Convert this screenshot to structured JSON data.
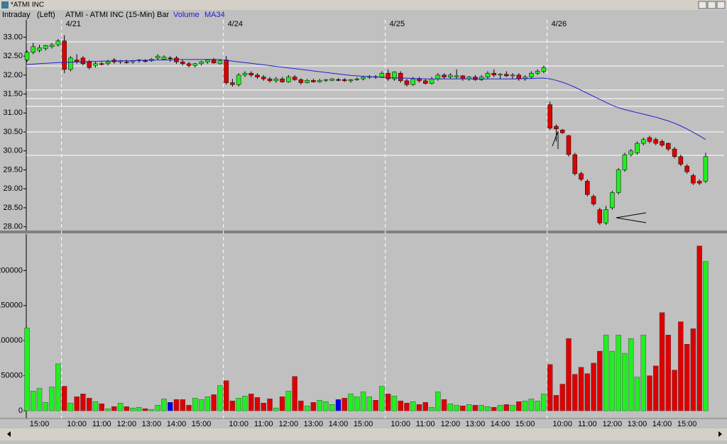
{
  "window_title": "*ATMI INC",
  "chart_data": [
    {
      "type": "candlestick",
      "period": "Intraday",
      "scale_side": "(Left)",
      "title": "ATMI - ATMI INC (15-Min)",
      "categories": [
        null,
        null,
        null,
        null,
        null,
        null,
        "4/21",
        null,
        null,
        null,
        null,
        null,
        null,
        null,
        null,
        null,
        null,
        null,
        null,
        null,
        null,
        null,
        null,
        null,
        null,
        null,
        null,
        null,
        null,
        null,
        null,
        null,
        "4/24",
        null,
        null,
        null,
        null,
        null,
        null,
        null,
        null,
        null,
        null,
        null,
        null,
        null,
        null,
        null,
        null,
        null,
        null,
        null,
        null,
        null,
        null,
        null,
        null,
        null,
        "4/25",
        null,
        null,
        null,
        null,
        null,
        null,
        null,
        null,
        null,
        null,
        null,
        null,
        null,
        null,
        null,
        null,
        null,
        null,
        null,
        null,
        null,
        null,
        null,
        null,
        null,
        "4/26",
        null,
        null,
        null,
        null,
        null,
        null,
        null,
        null,
        null,
        null,
        null,
        null,
        null,
        null,
        null,
        null,
        null,
        null,
        null,
        null,
        null,
        null,
        null,
        null,
        null
      ],
      "series": [
        {
          "name": "Bar",
          "up_color": "#22ee22",
          "down_color": "#dd0000",
          "open": [
            32.4,
            32.6,
            32.65,
            32.7,
            32.75,
            32.8,
            32.9,
            32.15,
            32.4,
            32.45,
            32.35,
            32.25,
            32.3,
            32.3,
            32.4,
            32.35,
            32.35,
            32.35,
            32.38,
            32.38,
            32.38,
            32.45,
            32.42,
            32.45,
            32.45,
            32.35,
            32.3,
            32.25,
            32.3,
            32.35,
            32.4,
            32.3,
            32.4,
            31.8,
            31.75,
            32.0,
            32.05,
            32.0,
            31.95,
            31.9,
            31.85,
            31.9,
            31.82,
            31.95,
            31.88,
            31.8,
            31.86,
            31.82,
            31.86,
            31.86,
            31.88,
            31.88,
            31.85,
            31.88,
            31.9,
            31.94,
            31.96,
            31.95,
            32.05,
            31.9,
            32.05,
            31.85,
            31.75,
            31.9,
            31.85,
            31.78,
            31.9,
            32.0,
            31.95,
            31.95,
            31.98,
            31.9,
            31.95,
            31.88,
            31.95,
            32.05,
            32.0,
            32.02,
            31.98,
            32.0,
            31.9,
            31.95,
            32.05,
            32.1,
            31.22,
            30.65,
            30.55,
            30.4,
            29.9,
            29.4,
            29.2,
            28.8,
            28.45,
            28.1,
            28.5,
            28.9,
            29.5,
            29.9,
            29.95,
            30.2,
            30.35,
            30.3,
            30.25,
            30.2,
            30.05,
            29.85,
            29.6,
            29.35,
            29.2,
            29.2
          ],
          "high": [
            32.65,
            32.85,
            32.8,
            32.8,
            32.85,
            32.95,
            33.05,
            32.5,
            32.55,
            32.5,
            32.4,
            32.35,
            32.35,
            32.4,
            32.45,
            32.4,
            32.4,
            32.4,
            32.42,
            32.42,
            32.45,
            32.55,
            32.52,
            32.5,
            32.5,
            32.4,
            32.35,
            32.32,
            32.38,
            32.42,
            32.45,
            32.4,
            32.5,
            31.9,
            32.05,
            32.1,
            32.1,
            32.05,
            32.0,
            31.95,
            31.95,
            31.95,
            32.0,
            32.0,
            31.92,
            31.9,
            31.9,
            31.9,
            31.9,
            31.92,
            31.92,
            31.92,
            31.9,
            31.94,
            31.96,
            32.0,
            32.0,
            32.1,
            32.15,
            32.1,
            32.1,
            31.9,
            31.95,
            31.95,
            31.9,
            31.95,
            32.05,
            32.05,
            32.05,
            32.15,
            32.0,
            31.98,
            32.0,
            32.0,
            32.1,
            32.15,
            32.05,
            32.1,
            32.05,
            32.05,
            32.0,
            32.1,
            32.15,
            32.25,
            31.3,
            30.7,
            30.58,
            30.42,
            29.95,
            29.45,
            29.25,
            28.85,
            28.5,
            28.55,
            28.95,
            29.55,
            29.95,
            30.05,
            30.25,
            30.35,
            30.4,
            30.35,
            30.3,
            30.22,
            30.1,
            29.9,
            29.65,
            29.4,
            29.25,
            29.95
          ],
          "low": [
            32.35,
            32.55,
            32.6,
            32.65,
            32.7,
            32.75,
            32.05,
            32.1,
            32.3,
            32.25,
            32.15,
            32.2,
            32.25,
            32.25,
            32.3,
            32.3,
            32.3,
            32.3,
            32.33,
            32.33,
            32.35,
            32.4,
            32.4,
            32.35,
            32.3,
            32.25,
            32.2,
            32.2,
            32.25,
            32.3,
            32.3,
            32.28,
            31.75,
            31.7,
            31.7,
            31.95,
            31.95,
            31.9,
            31.85,
            31.8,
            31.8,
            31.8,
            31.8,
            31.85,
            31.75,
            31.78,
            31.8,
            31.8,
            31.82,
            31.84,
            31.84,
            31.82,
            31.8,
            31.85,
            31.86,
            31.9,
            31.9,
            31.92,
            31.85,
            31.85,
            31.8,
            31.7,
            31.72,
            31.8,
            31.75,
            31.75,
            31.85,
            31.9,
            31.9,
            31.9,
            31.85,
            31.85,
            31.85,
            31.85,
            31.9,
            31.95,
            31.9,
            31.95,
            31.9,
            31.85,
            31.85,
            31.9,
            32.0,
            32.05,
            30.55,
            30.25,
            30.45,
            29.85,
            29.35,
            29.2,
            28.8,
            28.55,
            28.05,
            28.05,
            28.45,
            28.85,
            29.45,
            29.85,
            29.9,
            30.15,
            30.2,
            30.15,
            30.1,
            30.0,
            29.8,
            29.6,
            29.4,
            29.1,
            29.1,
            29.15
          ],
          "close": [
            32.6,
            32.75,
            32.72,
            32.78,
            32.8,
            32.9,
            32.15,
            32.45,
            32.35,
            32.3,
            32.2,
            32.3,
            32.28,
            32.35,
            32.35,
            32.38,
            32.33,
            32.38,
            32.4,
            32.36,
            32.42,
            32.5,
            32.48,
            32.45,
            32.35,
            32.3,
            32.25,
            32.3,
            32.35,
            32.4,
            32.32,
            32.38,
            31.8,
            31.75,
            32.0,
            32.05,
            32.0,
            31.95,
            31.9,
            31.85,
            31.9,
            31.82,
            31.95,
            31.88,
            31.8,
            31.86,
            31.82,
            31.86,
            31.88,
            31.9,
            31.88,
            31.85,
            31.88,
            31.9,
            31.94,
            31.96,
            31.95,
            32.05,
            31.9,
            32.08,
            31.85,
            31.75,
            31.9,
            31.85,
            31.78,
            31.9,
            32.0,
            31.95,
            32.0,
            31.98,
            31.9,
            31.95,
            31.88,
            31.95,
            32.05,
            32.0,
            32.02,
            31.98,
            32.0,
            31.9,
            31.95,
            32.05,
            32.1,
            32.2,
            30.6,
            30.58,
            30.48,
            29.9,
            29.4,
            29.25,
            28.85,
            28.6,
            28.1,
            28.45,
            28.9,
            29.5,
            29.9,
            30.0,
            30.2,
            30.3,
            30.25,
            30.2,
            30.15,
            30.05,
            29.85,
            29.65,
            29.45,
            29.15,
            29.15,
            29.85
          ]
        },
        {
          "name": "MA34",
          "type": "line",
          "color": "#2020d0",
          "values": [
            32.28,
            32.29,
            32.3,
            32.31,
            32.32,
            32.33,
            32.34,
            32.34,
            32.35,
            32.35,
            32.36,
            32.36,
            32.37,
            32.37,
            32.37,
            32.38,
            32.38,
            32.38,
            32.39,
            32.39,
            32.39,
            32.4,
            32.4,
            32.4,
            32.41,
            32.41,
            32.41,
            32.41,
            32.41,
            32.41,
            32.41,
            32.41,
            32.39,
            32.37,
            32.35,
            32.33,
            32.31,
            32.29,
            32.27,
            32.25,
            32.23,
            32.21,
            32.19,
            32.17,
            32.15,
            32.13,
            32.11,
            32.09,
            32.07,
            32.05,
            32.03,
            32.01,
            31.99,
            31.98,
            31.97,
            31.96,
            31.95,
            31.94,
            31.93,
            31.93,
            31.92,
            31.92,
            31.91,
            31.91,
            31.9,
            31.9,
            31.9,
            31.9,
            31.9,
            31.9,
            31.9,
            31.9,
            31.9,
            31.9,
            31.9,
            31.9,
            31.9,
            31.9,
            31.9,
            31.9,
            31.91,
            31.91,
            31.92,
            31.92,
            31.9,
            31.86,
            31.81,
            31.75,
            31.68,
            31.6,
            31.52,
            31.44,
            31.36,
            31.28,
            31.2,
            31.14,
            31.09,
            31.05,
            31.01,
            30.97,
            30.93,
            30.89,
            30.84,
            30.79,
            30.73,
            30.66,
            30.58,
            30.49,
            30.4,
            30.3
          ]
        }
      ],
      "ylim": [
        27.9,
        33.7
      ],
      "yticks": [
        {
          "value": 28,
          "label": "28.00"
        },
        {
          "value": 28.5,
          "label": "28.50"
        },
        {
          "value": 29,
          "label": "29.00"
        },
        {
          "value": 29.5,
          "label": "29.50"
        },
        {
          "value": 30,
          "label": "30.00"
        },
        {
          "value": 30.5,
          "label": "30.50"
        },
        {
          "value": 31,
          "label": "31.00"
        },
        {
          "value": 31.5,
          "label": "31.50"
        },
        {
          "value": 32,
          "label": "32.00"
        },
        {
          "value": 32.5,
          "label": "32.50"
        },
        {
          "value": 33,
          "label": "33.00"
        }
      ]
    },
    {
      "type": "bar",
      "categories": [
        null,
        null,
        "15:00",
        null,
        null,
        null,
        null,
        null,
        "10:00",
        null,
        null,
        null,
        "11:00",
        null,
        null,
        null,
        "12:00",
        null,
        null,
        null,
        "13:00",
        null,
        null,
        null,
        "14:00",
        null,
        null,
        null,
        "15:00",
        null,
        null,
        null,
        null,
        null,
        "10:00",
        null,
        null,
        null,
        "11:00",
        null,
        null,
        null,
        "12:00",
        null,
        null,
        null,
        "13:00",
        null,
        null,
        null,
        "14:00",
        null,
        null,
        null,
        "15:00",
        null,
        null,
        null,
        null,
        null,
        "10:00",
        null,
        null,
        null,
        "11:00",
        null,
        null,
        null,
        "12:00",
        null,
        null,
        null,
        "13:00",
        null,
        null,
        null,
        "14:00",
        null,
        null,
        null,
        "15:00",
        null,
        null,
        null,
        null,
        null,
        "10:00",
        null,
        null,
        null,
        "11:00",
        null,
        null,
        null,
        "12:00",
        null,
        null,
        null,
        "13:00",
        null,
        null,
        null,
        "14:00",
        null,
        null,
        null,
        "15:00",
        null,
        null,
        null
      ],
      "series": [
        {
          "name": "Volume",
          "flat_color": "#0000ee",
          "values": [
            118000,
            28000,
            32000,
            12000,
            34000,
            67000,
            35000,
            11000,
            20000,
            24000,
            18000,
            13000,
            10000,
            3000,
            6000,
            11000,
            6000,
            4000,
            5000,
            3000,
            2000,
            8000,
            17000,
            12000,
            16000,
            16000,
            8000,
            18000,
            16000,
            20000,
            23000,
            36000,
            43000,
            14000,
            18000,
            21000,
            24000,
            19000,
            11000,
            17000,
            4000,
            20000,
            28000,
            49000,
            14000,
            7000,
            12000,
            15000,
            13000,
            9000,
            16000,
            18000,
            24000,
            20000,
            27000,
            20000,
            15000,
            35000,
            24000,
            21000,
            14000,
            11000,
            13000,
            9000,
            12000,
            5000,
            27000,
            16000,
            10000,
            8000,
            7000,
            9000,
            8000,
            8000,
            6000,
            5000,
            8000,
            9000,
            8000,
            13000,
            14000,
            17000,
            14000,
            24000,
            66000,
            22000,
            38000,
            103000,
            52000,
            62000,
            53000,
            68000,
            85000,
            108000,
            85000,
            108000,
            82000,
            103000,
            48000,
            108000,
            50000,
            64000,
            140000,
            108000,
            58000,
            127000,
            95000,
            117000,
            235000,
            213000
          ]
        }
      ],
      "ylim": [
        -11000,
        252000
      ],
      "yticks": [
        0,
        50000,
        100000,
        150000,
        200000
      ]
    }
  ]
}
